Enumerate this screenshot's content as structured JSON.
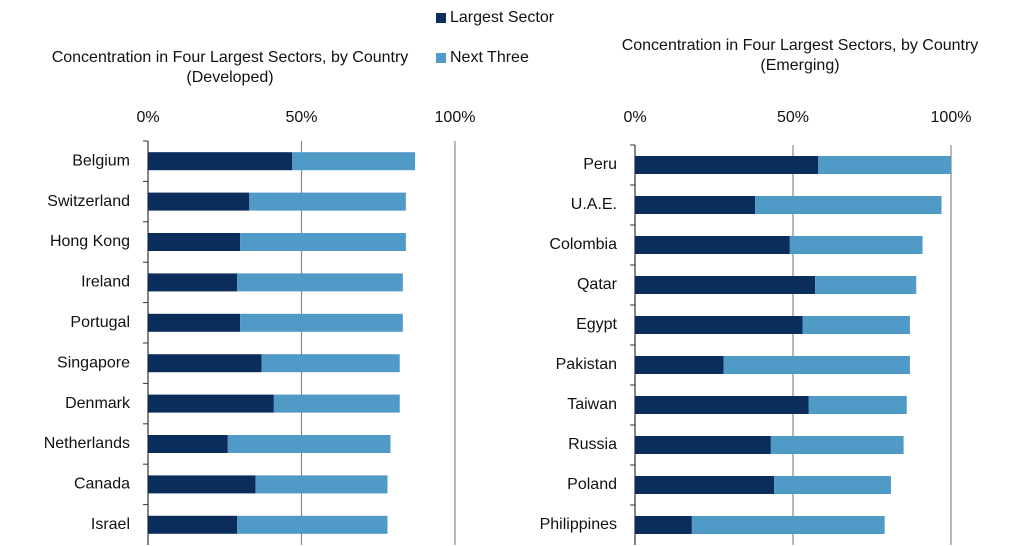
{
  "chart_data": [
    {
      "type": "hbar-stacked",
      "title": "Concentration in Four Largest Sectors, by Country (Developed)",
      "categories": [
        "Belgium",
        "Switzerland",
        "Hong Kong",
        "Ireland",
        "Portugal",
        "Singapore",
        "Denmark",
        "Netherlands",
        "Canada",
        "Israel"
      ],
      "series": [
        {
          "name": "Largest Sector",
          "color": "#0b2d5b",
          "values": [
            47,
            33,
            30,
            29,
            30,
            37,
            41,
            26,
            35,
            29
          ]
        },
        {
          "name": "Next Three",
          "color": "#4f9ac6",
          "values": [
            40,
            51,
            54,
            54,
            53,
            45,
            41,
            53,
            43,
            49
          ]
        }
      ],
      "xlim": [
        0,
        100
      ],
      "xticks": [
        {
          "value": 0,
          "label": "0%"
        },
        {
          "value": 50,
          "label": "50%"
        },
        {
          "value": 100,
          "label": "100%"
        }
      ],
      "grid": true
    },
    {
      "type": "hbar-stacked",
      "title": "Concentration in Four Largest Sectors, by Country (Emerging)",
      "categories": [
        "Peru",
        "U.A.E.",
        "Colombia",
        "Qatar",
        "Egypt",
        "Pakistan",
        "Taiwan",
        "Russia",
        "Poland",
        "Philippines"
      ],
      "series": [
        {
          "color": "#0b2d5b",
          "values": [
            58,
            38,
            49,
            57,
            53,
            28,
            55,
            43,
            44,
            18
          ]
        },
        {
          "color": "#4f9ac6",
          "values": [
            42,
            59,
            42,
            32,
            34,
            59,
            31,
            42,
            37,
            61
          ]
        }
      ],
      "xlim": [
        0,
        100
      ],
      "xticks": [
        {
          "value": 0,
          "label": "0%"
        },
        {
          "value": 50,
          "label": "50%"
        },
        {
          "value": 100,
          "label": "100%"
        }
      ],
      "grid": true
    }
  ]
}
